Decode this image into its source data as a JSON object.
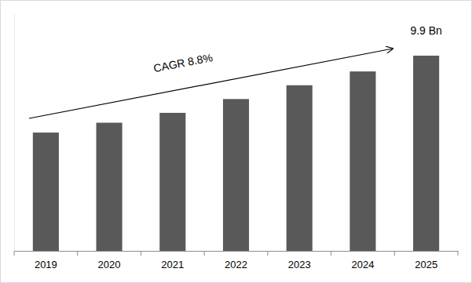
{
  "chart_data": {
    "type": "bar",
    "categories": [
      "2019",
      "2020",
      "2021",
      "2022",
      "2023",
      "2024",
      "2025"
    ],
    "values": [
      6.0,
      6.5,
      7.0,
      7.7,
      8.4,
      9.1,
      9.9
    ],
    "value_labels": [
      null,
      null,
      null,
      null,
      null,
      null,
      "9.9 Bn"
    ],
    "data_labels": true,
    "color": "#595959",
    "ylim": [
      0,
      12
    ],
    "tick_labels": "x",
    "grid": false,
    "annotations": [
      {
        "text": "CAGR 8.8%"
      }
    ]
  }
}
